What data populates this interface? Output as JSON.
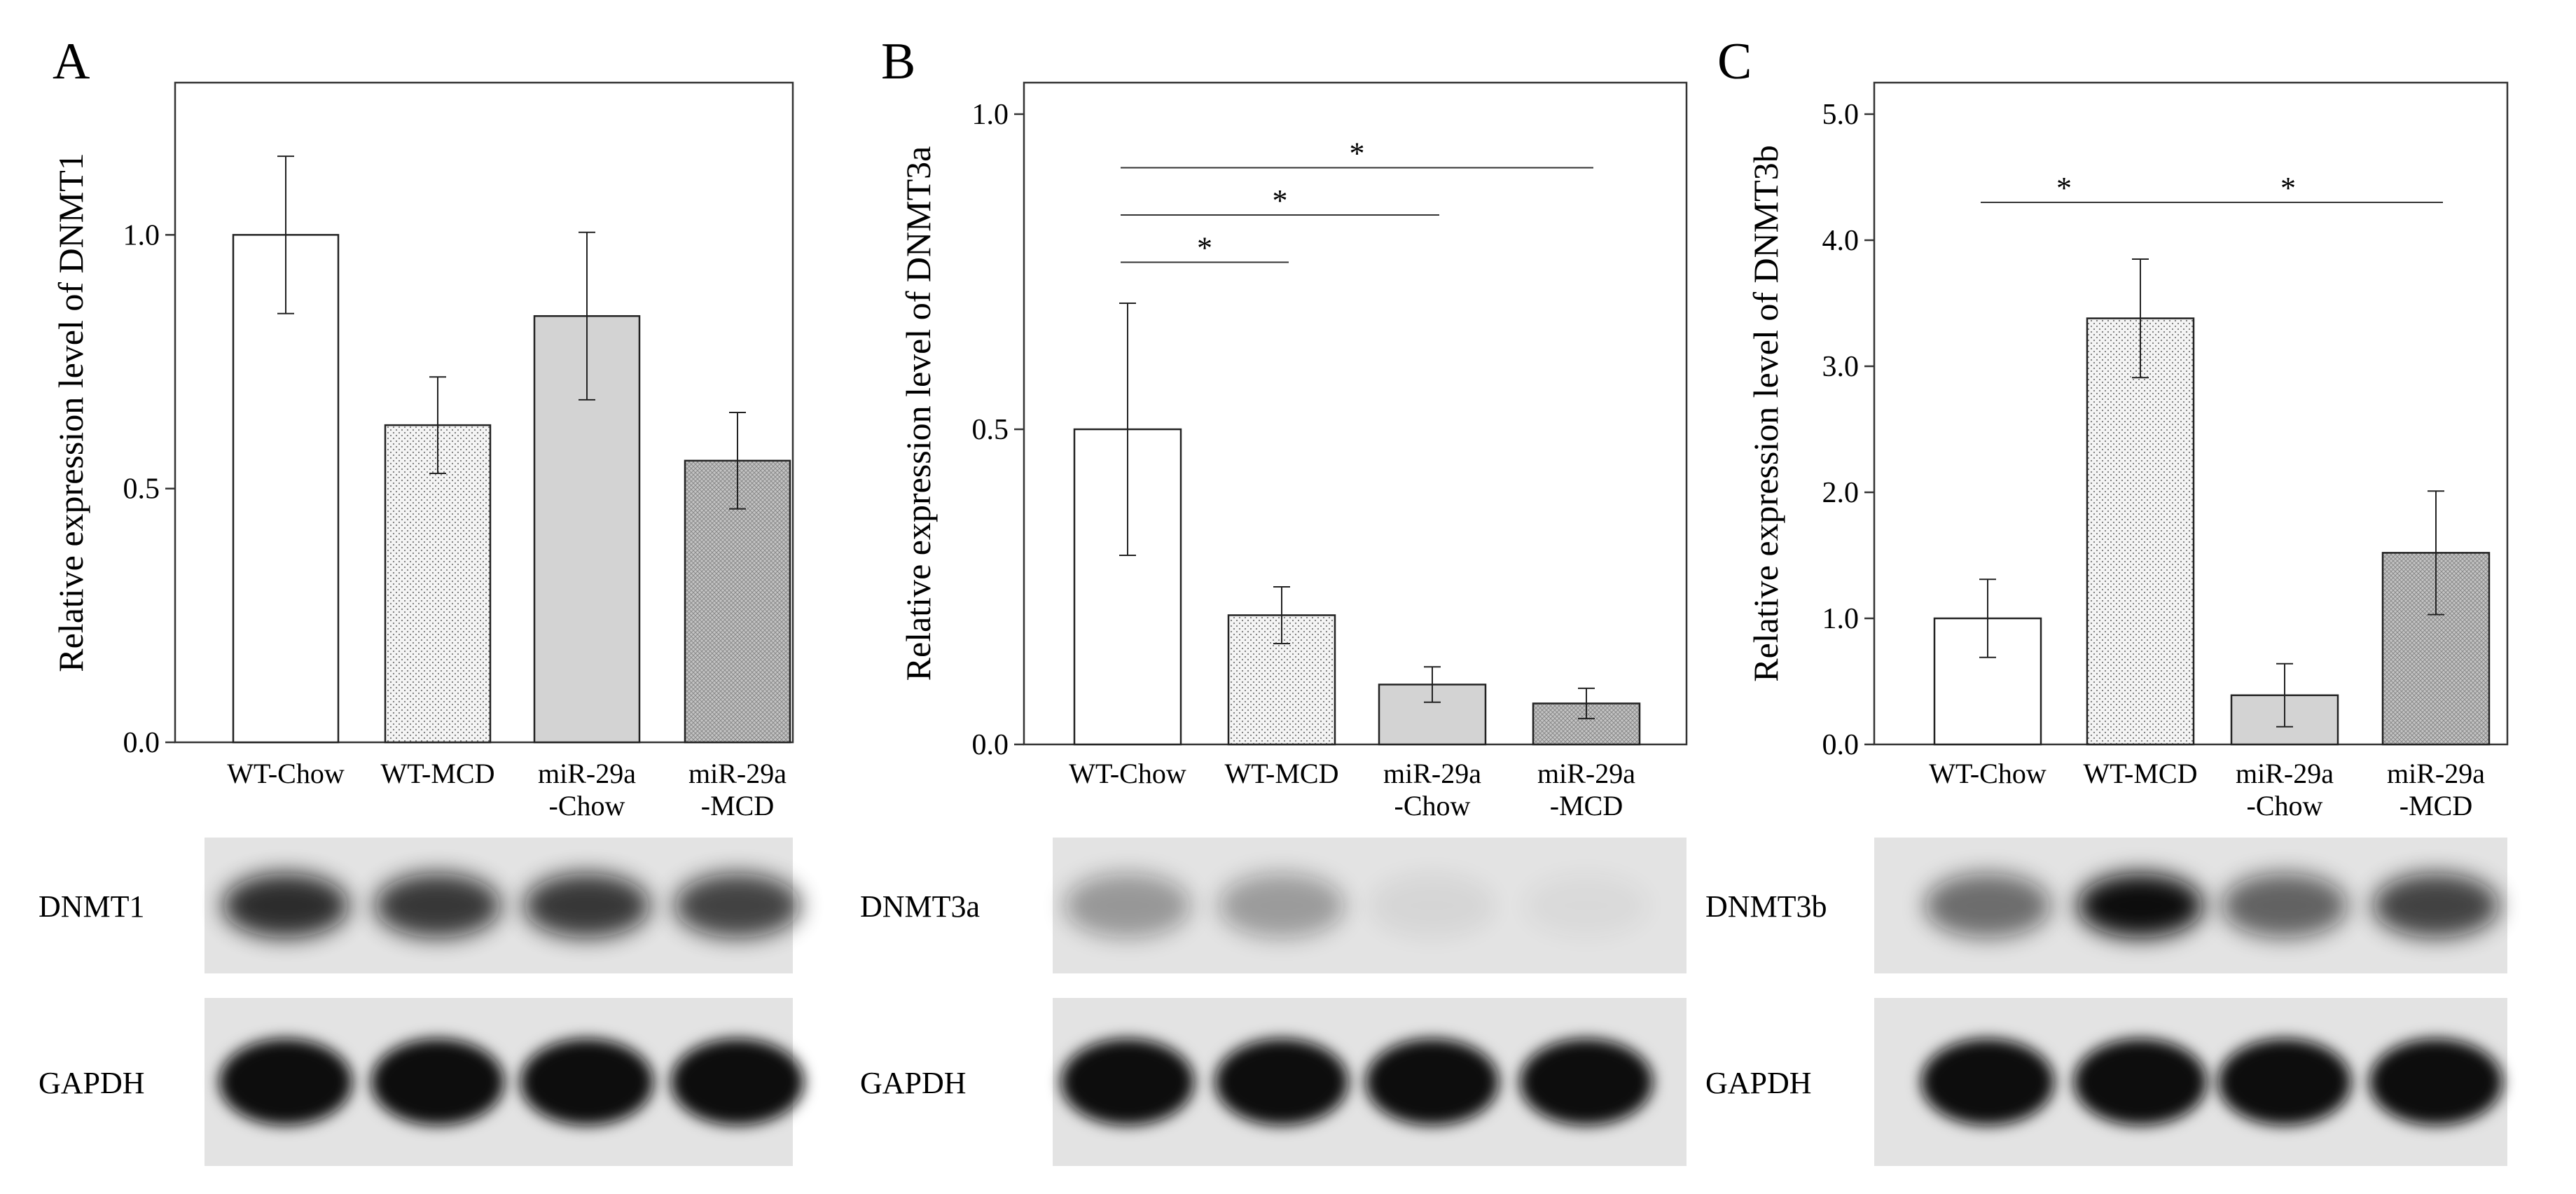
{
  "colors": {
    "bar_fills": [
      "#ffffff",
      "#f2f2f2",
      "#d3d3d3",
      "#bdbdbd"
    ],
    "bar_stroke": "#222222",
    "blot_background": "#e3e3e3",
    "band_color": "#111111"
  },
  "chart_data": [
    {
      "panel": "A",
      "type": "bar",
      "title": "",
      "ylabel": "Relative expression level of DNMT1",
      "xlabel": "",
      "ylim": [
        0,
        1.3
      ],
      "yticks": [
        0.0,
        0.5,
        1.0
      ],
      "ytick_labels": [
        "0.0",
        "0.5",
        "1.0"
      ],
      "grid": false,
      "categories": [
        [
          "WT-Chow"
        ],
        [
          "WT-MCD"
        ],
        [
          "miR-29a",
          "-Chow"
        ],
        [
          "miR-29a",
          "-MCD"
        ]
      ],
      "values": [
        1.0,
        0.625,
        0.84,
        0.555
      ],
      "errors": [
        0.155,
        0.095,
        0.165,
        0.095
      ],
      "significance": [],
      "blot": {
        "rows": [
          {
            "label": "DNMT1",
            "intensities": [
              0.85,
              0.8,
              0.8,
              0.75
            ]
          },
          {
            "label": "GAPDH",
            "intensities": [
              1.0,
              1.0,
              1.0,
              1.0
            ]
          }
        ]
      }
    },
    {
      "panel": "B",
      "type": "bar",
      "title": "",
      "ylabel": "Relative expression level of DNMT3a",
      "xlabel": "",
      "ylim": [
        0,
        1.05
      ],
      "yticks": [
        0.0,
        0.5,
        1.0
      ],
      "ytick_labels": [
        "0.0",
        "0.5",
        "1.0"
      ],
      "grid": false,
      "categories": [
        [
          "WT-Chow"
        ],
        [
          "WT-MCD"
        ],
        [
          "miR-29a",
          "-Chow"
        ],
        [
          "miR-29a",
          "-MCD"
        ]
      ],
      "values": [
        0.5,
        0.205,
        0.095,
        0.065
      ],
      "errors": [
        0.2,
        0.045,
        0.028,
        0.024
      ],
      "significance": [
        {
          "from": 0,
          "to": 1,
          "y": 0.765,
          "label": "*"
        },
        {
          "from": 0,
          "to": 2,
          "y": 0.84,
          "label": "*"
        },
        {
          "from": 0,
          "to": 3,
          "y": 0.915,
          "label": "*"
        }
      ],
      "blot": {
        "rows": [
          {
            "label": "DNMT3a",
            "intensities": [
              0.35,
              0.33,
              0.06,
              0.04
            ]
          },
          {
            "label": "GAPDH",
            "intensities": [
              1.0,
              1.0,
              1.0,
              1.0
            ]
          }
        ]
      }
    },
    {
      "panel": "C",
      "type": "bar",
      "title": "",
      "ylabel": "Relative expression level of DNMT3b",
      "xlabel": "",
      "ylim": [
        0,
        5.25
      ],
      "yticks": [
        0.0,
        1.0,
        2.0,
        3.0,
        4.0,
        5.0
      ],
      "ytick_labels": [
        "0.0",
        "1.0",
        "2.0",
        "3.0",
        "4.0",
        "5.0"
      ],
      "grid": false,
      "categories": [
        [
          "WT-Chow"
        ],
        [
          "WT-MCD"
        ],
        [
          "miR-29a",
          "-Chow"
        ],
        [
          "miR-29a",
          "-MCD"
        ]
      ],
      "values": [
        1.0,
        3.38,
        0.39,
        1.52
      ],
      "errors": [
        0.31,
        0.47,
        0.25,
        0.49
      ],
      "significance": [
        {
          "from": 0,
          "to": 1,
          "y": 4.3,
          "label": "*"
        },
        {
          "from": 1,
          "to": 3,
          "y": 4.3,
          "label": "*"
        }
      ],
      "blot": {
        "rows": [
          {
            "label": "DNMT3b",
            "intensities": [
              0.55,
              1.0,
              0.6,
              0.75
            ]
          },
          {
            "label": "GAPDH",
            "intensities": [
              1.0,
              1.0,
              1.0,
              1.0
            ]
          }
        ]
      }
    }
  ]
}
